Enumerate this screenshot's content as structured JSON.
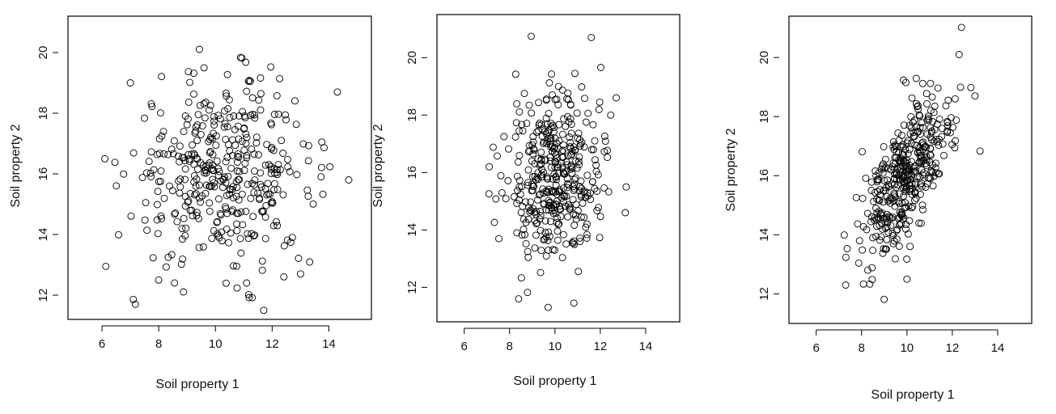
{
  "chart_data": [
    {
      "type": "scatter",
      "title": "",
      "xlabel": "Soil property 1",
      "ylabel": "Soil property 2",
      "xlim": [
        4.8,
        15.5
      ],
      "ylim": [
        11.2,
        21.2
      ],
      "xticks": [
        6,
        8,
        10,
        12,
        14
      ],
      "yticks": [
        12,
        14,
        16,
        18,
        20
      ],
      "grid": false,
      "n_points": 400,
      "x_mean": 10.3,
      "x_sd": 1.6,
      "y_mean": 16.0,
      "y_sd": 1.5,
      "correlation": 0.0,
      "outlier_points": [
        {
          "x": 6.1,
          "y": 16.5
        },
        {
          "x": 14.3,
          "y": 18.7
        },
        {
          "x": 14.7,
          "y": 15.8
        },
        {
          "x": 11.1,
          "y": 12.4
        },
        {
          "x": 9.6,
          "y": 19.5
        },
        {
          "x": 7.0,
          "y": 19.0
        },
        {
          "x": 8.0,
          "y": 12.5
        },
        {
          "x": 13.0,
          "y": 12.7
        }
      ]
    },
    {
      "type": "scatter",
      "title": "",
      "xlabel": "Soil property 1",
      "ylabel": "Soil property 2",
      "xlim": [
        4.8,
        15.5
      ],
      "ylim": [
        10.8,
        21.5
      ],
      "xticks": [
        6,
        8,
        10,
        12,
        14
      ],
      "yticks": [
        12,
        14,
        16,
        18,
        20
      ],
      "grid": false,
      "n_points": 400,
      "x_mean": 10.0,
      "x_sd": 1.0,
      "y_mean": 16.0,
      "y_sd": 1.5,
      "correlation": 0.0,
      "outlier_points": [
        {
          "x": 11.6,
          "y": 20.7
        },
        {
          "x": 9.7,
          "y": 11.3
        },
        {
          "x": 13.1,
          "y": 14.6
        },
        {
          "x": 7.1,
          "y": 16.2
        },
        {
          "x": 12.7,
          "y": 18.6
        },
        {
          "x": 8.4,
          "y": 11.6
        }
      ]
    },
    {
      "type": "scatter",
      "title": "",
      "xlabel": "Soil property 1",
      "ylabel": "Soil property 2",
      "xlim": [
        4.8,
        15.5
      ],
      "ylim": [
        11.0,
        21.4
      ],
      "xticks": [
        6,
        8,
        10,
        12,
        14
      ],
      "yticks": [
        12,
        14,
        16,
        18,
        20
      ],
      "grid": false,
      "n_points": 400,
      "x_mean": 10.0,
      "x_sd": 1.0,
      "y_mean": 16.0,
      "y_sd": 1.5,
      "correlation": 0.7,
      "outlier_points": [
        {
          "x": 7.3,
          "y": 12.3
        },
        {
          "x": 12.3,
          "y": 20.1
        },
        {
          "x": 13.0,
          "y": 18.7
        },
        {
          "x": 10.0,
          "y": 12.5
        }
      ]
    }
  ]
}
